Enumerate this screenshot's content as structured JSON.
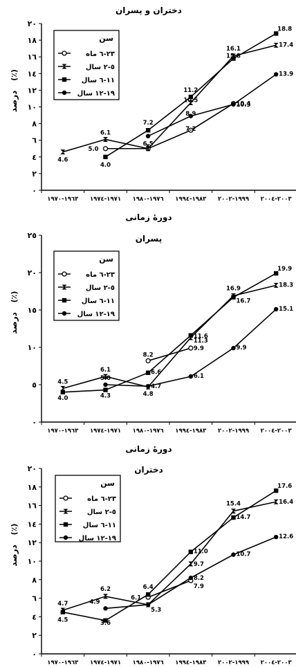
{
  "chart_data": [
    {
      "type": "line",
      "title": "دختران و پسران",
      "xlabel": "دورهٔ زمانی",
      "ylabel": "درصد",
      "ylabel_unit": "(٪)",
      "categories": [
        "١٩٦٣-١٩٧٠",
        "١٩٧١-١٩٧٤",
        "١٩٧٦-١٩٨٠",
        "١٩٨٣-١٩٩٤",
        "١٩٩٩-٢٠٠٢",
        "٢٠٠٣-٢٠٠٤"
      ],
      "yticks": [
        "٠",
        "٢",
        "٤",
        "٦",
        "٨",
        "١٠",
        "١٢",
        "١٤",
        "١٦",
        "١٨",
        "٢٠"
      ],
      "ylim": [
        0,
        20
      ],
      "legend_title": "سن",
      "legend_position": "top-left",
      "series": [
        {
          "name": "٢٣-٦ ماه",
          "marker": "circle-open",
          "values": [
            null,
            5.0,
            5.0,
            7.2,
            10.4,
            null
          ]
        },
        {
          "name": "٥-٢ سال",
          "marker": "bowtie",
          "values": [
            4.6,
            6.1,
            5.0,
            10.5,
            16.1,
            17.4
          ]
        },
        {
          "name": "١١-٦ سال",
          "marker": "square",
          "values": [
            null,
            4.0,
            7.2,
            11.2,
            15.8,
            18.8
          ]
        },
        {
          "name": "١٩-١٢ سال",
          "marker": "circle-filled",
          "values": [
            null,
            null,
            6.5,
            8.9,
            10.3,
            13.9
          ]
        }
      ],
      "labels": [
        {
          "x": 0,
          "y": 4.6,
          "text": "4.6"
        },
        {
          "x": 1,
          "y": 6.1,
          "text": "6.1"
        },
        {
          "x": 1,
          "y": 5.0,
          "text": "5.0"
        },
        {
          "x": 1,
          "y": 4.0,
          "text": "4.0"
        },
        {
          "x": 2,
          "y": 5.0,
          "text": "5"
        },
        {
          "x": 2,
          "y": 6.5,
          "text": "6.5"
        },
        {
          "x": 2,
          "y": 7.2,
          "text": "7.2"
        },
        {
          "x": 3,
          "y": 11.2,
          "text": "11.2"
        },
        {
          "x": 3,
          "y": 10.5,
          "text": "10.5"
        },
        {
          "x": 3,
          "y": 8.9,
          "text": "8.9"
        },
        {
          "x": 3,
          "y": 7.2,
          "text": "7.2"
        },
        {
          "x": 4,
          "y": 16.1,
          "text": "16.1"
        },
        {
          "x": 4,
          "y": 15.8,
          "text": "15.8"
        },
        {
          "x": 4,
          "y": 10.4,
          "text": "10.4"
        },
        {
          "x": 4,
          "y": 10.3,
          "text": "10.3"
        },
        {
          "x": 5,
          "y": 18.8,
          "text": "18.8"
        },
        {
          "x": 5,
          "y": 17.4,
          "text": "17.4"
        },
        {
          "x": 5,
          "y": 13.9,
          "text": "13.9"
        }
      ]
    },
    {
      "type": "line",
      "title": "پسران",
      "xlabel": "دورهٔ زمانی",
      "ylabel": "درصد",
      "ylabel_unit": "(٪)",
      "categories": [
        "١٩٦٣-١٩٧٠",
        "١٩٧١-١٩٧٤",
        "١٩٧٦-١٩٨٠",
        "١٩٨٣-١٩٩٤",
        "١٩٩٩-٢٠٠٢",
        "٢٠٠٣-٢٠٠٤"
      ],
      "yticks": [
        "٠",
        "٥",
        "١٠",
        "١٥",
        "٢٠",
        "٢٥"
      ],
      "ylim": [
        0,
        25
      ],
      "legend_title": "سن",
      "legend_position": "top-left",
      "series": [
        {
          "name": "٢٣-٦ ماه",
          "marker": "circle-open",
          "values": [
            null,
            null,
            8.2,
            9.9,
            null,
            null
          ]
        },
        {
          "name": "٥-٢ سال",
          "marker": "bowtie",
          "values": [
            4.5,
            6.1,
            4.7,
            11.3,
            16.9,
            18.3
          ]
        },
        {
          "name": "١١-٦ سال",
          "marker": "square",
          "values": [
            4.0,
            4.3,
            6.6,
            11.6,
            16.7,
            19.9
          ]
        },
        {
          "name": "١٩-١٢ سال",
          "marker": "circle-filled",
          "values": [
            null,
            5.0,
            4.8,
            6.1,
            9.9,
            15.1
          ]
        }
      ],
      "labels": [
        {
          "x": 0,
          "y": 4.5,
          "text": "4.5"
        },
        {
          "x": 0,
          "y": 4.0,
          "text": "4.0"
        },
        {
          "x": 1,
          "y": 6.1,
          "text": "6.1"
        },
        {
          "x": 1,
          "y": 5.0,
          "text": "5.0"
        },
        {
          "x": 1,
          "y": 4.3,
          "text": "4.3"
        },
        {
          "x": 2,
          "y": 8.2,
          "text": "8.2"
        },
        {
          "x": 2,
          "y": 6.6,
          "text": "6.6"
        },
        {
          "x": 2,
          "y": 4.7,
          "text": "4.7"
        },
        {
          "x": 2,
          "y": 4.8,
          "text": "4.8"
        },
        {
          "x": 3,
          "y": 11.6,
          "text": "11.6"
        },
        {
          "x": 3,
          "y": 11.3,
          "text": "11.3"
        },
        {
          "x": 3,
          "y": 9.9,
          "text": "9.9"
        },
        {
          "x": 3,
          "y": 6.1,
          "text": "6.1"
        },
        {
          "x": 4,
          "y": 16.9,
          "text": "16.9"
        },
        {
          "x": 4,
          "y": 16.7,
          "text": "16.7"
        },
        {
          "x": 4,
          "y": 9.9,
          "text": "9.9"
        },
        {
          "x": 5,
          "y": 19.9,
          "text": "19.9"
        },
        {
          "x": 5,
          "y": 18.3,
          "text": "18.3"
        },
        {
          "x": 5,
          "y": 15.1,
          "text": "15.1"
        }
      ]
    },
    {
      "type": "line",
      "title": "دختران",
      "xlabel": "",
      "ylabel": "درصد",
      "ylabel_unit": "(٪)",
      "categories": [
        "١٩٦٣-١٩٧٠",
        "١٩٧١-١٩٧٤",
        "١٩٧٦-١٩٨٠",
        "١٩٨٣-١٩٩٤",
        "١٩٩٩-٢٠٠٢",
        "٢٠٠٣-٢٠٠٤"
      ],
      "yticks": [
        "٠",
        "٢",
        "٤",
        "٦",
        "٨",
        "١٠",
        "١٢",
        "١٤",
        "١٦",
        "١٨",
        "٢٠"
      ],
      "ylim": [
        0,
        20
      ],
      "legend_title": "سن",
      "legend_position": "top-left",
      "series": [
        {
          "name": "٢٣-٦ ماه",
          "marker": "circle-open",
          "values": [
            null,
            null,
            6.1,
            7.9,
            null,
            null
          ]
        },
        {
          "name": "٥-٢ سال",
          "marker": "bowtie",
          "values": [
            4.7,
            6.2,
            5.3,
            9.7,
            15.4,
            16.4
          ]
        },
        {
          "name": "١١-٦ سال",
          "marker": "square",
          "values": [
            4.5,
            3.6,
            6.4,
            11.0,
            14.7,
            17.6
          ]
        },
        {
          "name": "١٩-١٢ سال",
          "marker": "circle-filled",
          "values": [
            null,
            4.9,
            5.3,
            8.2,
            10.7,
            12.6
          ]
        }
      ],
      "labels": [
        {
          "x": 0,
          "y": 4.7,
          "text": "4.7"
        },
        {
          "x": 0,
          "y": 4.5,
          "text": "4.5"
        },
        {
          "x": 1,
          "y": 6.2,
          "text": "6.2"
        },
        {
          "x": 1,
          "y": 4.9,
          "text": "4.9"
        },
        {
          "x": 1,
          "y": 3.6,
          "text": "3.6"
        },
        {
          "x": 2,
          "y": 6.4,
          "text": "6.4"
        },
        {
          "x": 2,
          "y": 6.1,
          "text": "6.1"
        },
        {
          "x": 2,
          "y": 5.3,
          "text": "5.3"
        },
        {
          "x": 3,
          "y": 11.0,
          "text": "11.0"
        },
        {
          "x": 3,
          "y": 9.7,
          "text": "9.7"
        },
        {
          "x": 3,
          "y": 8.2,
          "text": "8.2"
        },
        {
          "x": 3,
          "y": 7.9,
          "text": "7.9"
        },
        {
          "x": 4,
          "y": 15.4,
          "text": "15.4"
        },
        {
          "x": 4,
          "y": 14.7,
          "text": "14.7"
        },
        {
          "x": 4,
          "y": 10.7,
          "text": "10.7"
        },
        {
          "x": 5,
          "y": 17.6,
          "text": "17.6"
        },
        {
          "x": 5,
          "y": 16.4,
          "text": "16.4"
        },
        {
          "x": 5,
          "y": 12.6,
          "text": "12.6"
        }
      ]
    }
  ]
}
